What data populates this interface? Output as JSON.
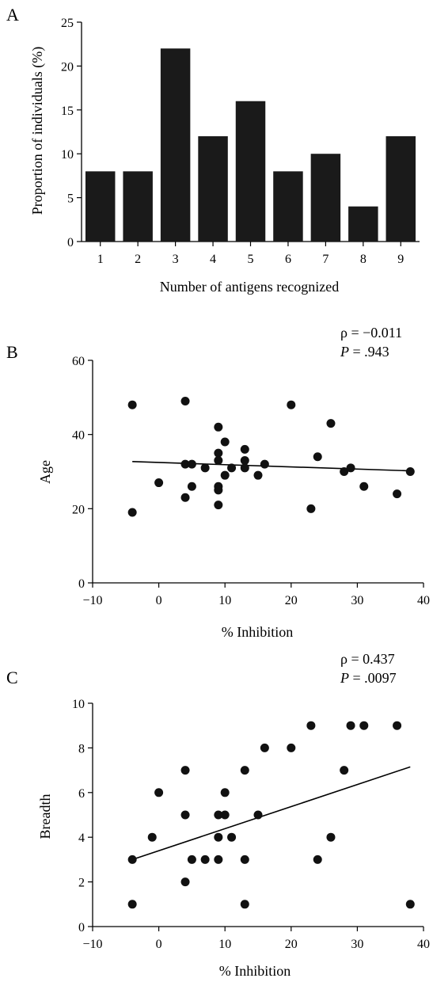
{
  "chart_data": [
    {
      "panel": "A",
      "type": "bar",
      "categories": [
        "1",
        "2",
        "3",
        "4",
        "5",
        "6",
        "7",
        "8",
        "9"
      ],
      "values": [
        8,
        8,
        22,
        12,
        16,
        8,
        10,
        4,
        12
      ],
      "xlabel": "Number of antigens recognized",
      "ylabel": "Proportion of individuals (%)",
      "ylim": [
        0,
        25
      ],
      "yticks": [
        0,
        5,
        10,
        15,
        20,
        25
      ],
      "bar_color": "#1a1a1a"
    },
    {
      "panel": "B",
      "type": "scatter",
      "xlabel": "% Inhibition",
      "ylabel": "Age",
      "xlim": [
        -10,
        40
      ],
      "ylim": [
        0,
        60
      ],
      "xticks": [
        -10,
        0,
        10,
        20,
        30,
        40
      ],
      "yticks": [
        0,
        20,
        40,
        60
      ],
      "stat_rho": "ρ = −0.011",
      "stat_p_label": "P",
      "stat_p_value": " = .943",
      "points": [
        [
          -4,
          48
        ],
        [
          -4,
          19
        ],
        [
          0,
          27
        ],
        [
          4,
          49
        ],
        [
          4,
          32
        ],
        [
          4,
          23
        ],
        [
          5,
          32
        ],
        [
          5,
          26
        ],
        [
          7,
          31
        ],
        [
          9,
          42
        ],
        [
          9,
          35
        ],
        [
          9,
          33
        ],
        [
          9,
          26
        ],
        [
          9,
          25
        ],
        [
          9,
          21
        ],
        [
          10,
          38
        ],
        [
          10,
          29
        ],
        [
          11,
          31
        ],
        [
          13,
          36
        ],
        [
          13,
          33
        ],
        [
          13,
          31
        ],
        [
          15,
          29
        ],
        [
          16,
          32
        ],
        [
          20,
          48
        ],
        [
          23,
          20
        ],
        [
          24,
          34
        ],
        [
          26,
          43
        ],
        [
          28,
          30
        ],
        [
          29,
          31
        ],
        [
          31,
          26
        ],
        [
          36,
          24
        ],
        [
          38,
          30
        ]
      ],
      "fit_line": [
        [
          -4,
          32.7
        ],
        [
          38,
          30.2
        ]
      ]
    },
    {
      "panel": "C",
      "type": "scatter",
      "xlabel": "% Inhibition",
      "ylabel": "Breadth",
      "xlim": [
        -10,
        40
      ],
      "ylim": [
        0,
        10
      ],
      "xticks": [
        -10,
        0,
        10,
        20,
        30,
        40
      ],
      "yticks": [
        0,
        2,
        4,
        6,
        8,
        10
      ],
      "stat_rho": "ρ = 0.437",
      "stat_p_label": "P",
      "stat_p_value": " = .0097",
      "points": [
        [
          -4,
          3
        ],
        [
          -4,
          1
        ],
        [
          -1,
          4
        ],
        [
          0,
          6
        ],
        [
          4,
          7
        ],
        [
          4,
          5
        ],
        [
          4,
          2
        ],
        [
          5,
          3
        ],
        [
          7,
          3
        ],
        [
          9,
          5
        ],
        [
          9,
          4
        ],
        [
          9,
          3
        ],
        [
          10,
          6
        ],
        [
          10,
          5
        ],
        [
          11,
          4
        ],
        [
          13,
          7
        ],
        [
          13,
          3
        ],
        [
          13,
          1
        ],
        [
          15,
          5
        ],
        [
          16,
          8
        ],
        [
          20,
          8
        ],
        [
          23,
          9
        ],
        [
          24,
          3
        ],
        [
          26,
          4
        ],
        [
          28,
          7
        ],
        [
          29,
          9
        ],
        [
          31,
          9
        ],
        [
          36,
          9
        ],
        [
          38,
          1
        ]
      ],
      "fit_line": [
        [
          -4,
          3.0
        ],
        [
          38,
          7.15
        ]
      ]
    }
  ],
  "panels": {
    "a_label": "A",
    "b_label": "B",
    "c_label": "C"
  }
}
